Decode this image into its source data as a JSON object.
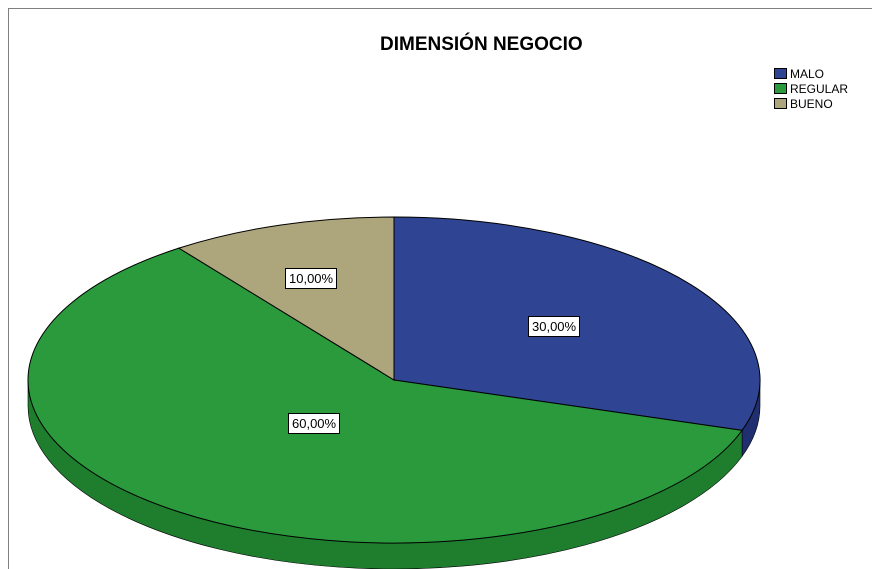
{
  "chart_data": {
    "type": "pie",
    "title": "DIMENSIÓN NEGOCIO",
    "legend_position": "top-right",
    "slices": [
      {
        "label": "MALO",
        "value": 30,
        "value_label": "30,00%",
        "color": "#2f4593",
        "side_color": "#1f2f70"
      },
      {
        "label": "REGULAR",
        "value": 60,
        "value_label": "60,00%",
        "color": "#2a9a3c",
        "side_color": "#1f7d2e"
      },
      {
        "label": "BUENO",
        "value": 10,
        "value_label": "10,00%",
        "color": "#ada57c",
        "side_color": "#8c8560"
      }
    ]
  }
}
